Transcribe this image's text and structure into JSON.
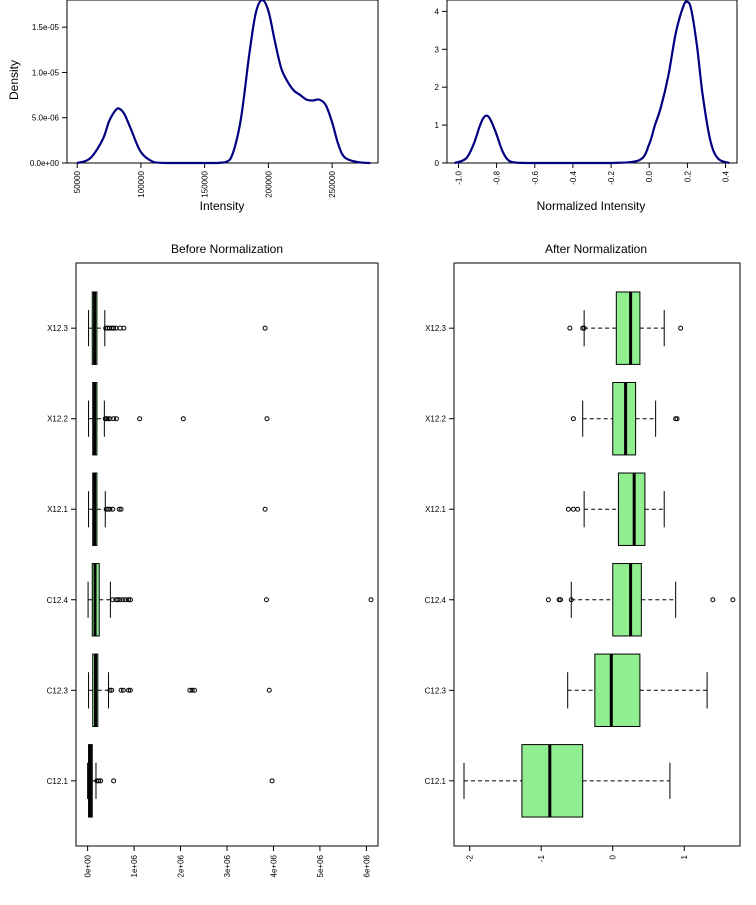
{
  "chart_data": [
    {
      "type": "line",
      "subtype": "density",
      "title": "",
      "xlabel": "Intensity",
      "ylabel": "Density",
      "xlim": [
        42000,
        286000
      ],
      "ylim": [
        0,
        1.8e-05
      ],
      "x_ticks": [
        50000,
        100000,
        150000,
        200000,
        250000
      ],
      "x_tick_labels": [
        "50000",
        "100000",
        "150000",
        "200000",
        "250000"
      ],
      "y_ticks": [
        0,
        5e-06,
        1e-05,
        1.5e-05
      ],
      "y_tick_labels": [
        "0.0e+00",
        "5.0e-06",
        "1.0e-05",
        "1.5e-05"
      ],
      "line_color": "#000080",
      "series": [
        {
          "x": [
            50000,
            60000,
            70000,
            75000,
            80000,
            83000,
            87000,
            92000,
            100000,
            110000,
            120000,
            140000,
            160000,
            170000,
            178000,
            185000,
            190000,
            195000,
            200000,
            205000,
            210000,
            215000,
            220000,
            225000,
            230000,
            235000,
            240000,
            245000,
            250000,
            255000,
            260000,
            270000,
            280000
          ],
          "y": [
            0,
            5e-07,
            2.6e-06,
            4.6e-06,
            5.8e-06,
            6e-06,
            5.4e-06,
            3.8e-06,
            1.2e-06,
            1e-07,
            0,
            0,
            0,
            4e-07,
            4.5e-06,
            1.2e-05,
            1.65e-05,
            1.8e-05,
            1.68e-05,
            1.35e-05,
            1.05e-05,
            9e-06,
            8e-06,
            7.5e-06,
            7e-06,
            6.9e-06,
            7e-06,
            6.4e-06,
            4.5e-06,
            2e-06,
            6e-07,
            1e-07,
            0
          ]
        }
      ]
    },
    {
      "type": "line",
      "subtype": "density",
      "title": "",
      "xlabel": "Normalized Intensity",
      "ylabel": "",
      "xlim": [
        -1.06,
        0.46
      ],
      "ylim": [
        0,
        4.3
      ],
      "x_ticks": [
        -1.0,
        -0.8,
        -0.6,
        -0.4,
        -0.2,
        0.0,
        0.2,
        0.4
      ],
      "x_tick_labels": [
        "-1.0",
        "-0.8",
        "-0.6",
        "-0.4",
        "-0.2",
        "0.0",
        "0.2",
        "0.4"
      ],
      "y_ticks": [
        0,
        1,
        2,
        3,
        4
      ],
      "y_tick_labels": [
        "0",
        "1",
        "2",
        "3",
        "4"
      ],
      "line_color": "#000080",
      "series": [
        {
          "x": [
            -1.02,
            -0.96,
            -0.92,
            -0.89,
            -0.87,
            -0.85,
            -0.83,
            -0.8,
            -0.77,
            -0.74,
            -0.7,
            -0.6,
            -0.4,
            -0.2,
            -0.05,
            0.0,
            0.03,
            0.06,
            0.1,
            0.14,
            0.18,
            0.2,
            0.22,
            0.25,
            0.28,
            0.32,
            0.36,
            0.42
          ],
          "y": [
            0,
            0.12,
            0.5,
            0.95,
            1.18,
            1.25,
            1.12,
            0.75,
            0.32,
            0.08,
            0.01,
            0,
            0,
            0,
            0.08,
            0.5,
            1.0,
            1.45,
            2.3,
            3.45,
            4.15,
            4.25,
            4.05,
            3.1,
            1.8,
            0.6,
            0.12,
            0
          ]
        }
      ]
    },
    {
      "type": "box",
      "orientation": "horizontal",
      "title": "Before Normalization",
      "xlabel": "",
      "ylabel": "",
      "xlim": [
        -250000,
        6250000
      ],
      "x_ticks": [
        0,
        1000000,
        2000000,
        3000000,
        4000000,
        5000000,
        6000000
      ],
      "x_tick_labels": [
        "0e+00",
        "1e+06",
        "2e+06",
        "3e+06",
        "4e+06",
        "5e+06",
        "6e+06"
      ],
      "box_color": "#90ee90",
      "categories": [
        "C12.1",
        "C12.3",
        "C12.4",
        "X12.1",
        "X12.2",
        "X12.3"
      ],
      "boxes": [
        {
          "whisker_low": 0,
          "q1": 20000,
          "median": 60000,
          "q3": 100000,
          "whisker_high": 180000,
          "outliers": [
            200000,
            240000,
            280000,
            560000,
            3970000
          ]
        },
        {
          "whisker_low": 20000,
          "q1": 110000,
          "median": 170000,
          "q3": 220000,
          "whisker_high": 450000,
          "outliers": [
            480000,
            520000,
            720000,
            770000,
            880000,
            920000,
            2200000,
            2250000,
            2300000,
            3910000
          ]
        },
        {
          "whisker_low": 10000,
          "q1": 100000,
          "median": 160000,
          "q3": 250000,
          "whisker_high": 490000,
          "outliers": [
            540000,
            610000,
            650000,
            700000,
            760000,
            820000,
            880000,
            920000,
            3850000,
            6100000
          ]
        },
        {
          "whisker_low": 20000,
          "q1": 110000,
          "median": 150000,
          "q3": 200000,
          "whisker_high": 380000,
          "outliers": [
            400000,
            440000,
            480000,
            540000,
            680000,
            720000,
            3820000
          ]
        },
        {
          "whisker_low": 20000,
          "q1": 110000,
          "median": 150000,
          "q3": 200000,
          "whisker_high": 360000,
          "outliers": [
            380000,
            410000,
            440000,
            480000,
            560000,
            620000,
            1120000,
            2060000,
            3860000
          ]
        },
        {
          "whisker_low": 20000,
          "q1": 100000,
          "median": 150000,
          "q3": 200000,
          "whisker_high": 370000,
          "outliers": [
            390000,
            430000,
            470000,
            520000,
            560000,
            610000,
            700000,
            780000,
            3820000
          ]
        }
      ]
    },
    {
      "type": "box",
      "orientation": "horizontal",
      "title": "After Normalization",
      "xlabel": "",
      "ylabel": "",
      "xlim": [
        -2.22,
        1.78
      ],
      "x_ticks": [
        -2,
        -1,
        0,
        1
      ],
      "x_tick_labels": [
        "-2",
        "-1",
        "0",
        "1"
      ],
      "box_color": "#90ee90",
      "categories": [
        "C12.1",
        "C12.3",
        "C12.4",
        "X12.1",
        "X12.2",
        "X12.3"
      ],
      "boxes": [
        {
          "whisker_low": -2.08,
          "q1": -1.27,
          "median": -0.88,
          "q3": -0.42,
          "whisker_high": 0.8,
          "outliers": []
        },
        {
          "whisker_low": -0.63,
          "q1": -0.25,
          "median": -0.02,
          "q3": 0.38,
          "whisker_high": 1.32,
          "outliers": []
        },
        {
          "whisker_low": -0.58,
          "q1": 0.0,
          "median": 0.25,
          "q3": 0.4,
          "whisker_high": 0.88,
          "outliers": [
            -0.9,
            -0.75,
            -0.73,
            -0.58,
            1.4,
            1.68
          ]
        },
        {
          "whisker_low": -0.4,
          "q1": 0.08,
          "median": 0.3,
          "q3": 0.45,
          "whisker_high": 0.72,
          "outliers": [
            -0.62,
            -0.55,
            -0.49
          ]
        },
        {
          "whisker_low": -0.42,
          "q1": 0.0,
          "median": 0.18,
          "q3": 0.32,
          "whisker_high": 0.6,
          "outliers": [
            -0.55,
            0.88,
            0.9
          ]
        },
        {
          "whisker_low": -0.4,
          "q1": 0.05,
          "median": 0.25,
          "q3": 0.38,
          "whisker_high": 0.72,
          "outliers": [
            -0.6,
            -0.42,
            -0.4,
            0.95
          ]
        }
      ]
    }
  ]
}
